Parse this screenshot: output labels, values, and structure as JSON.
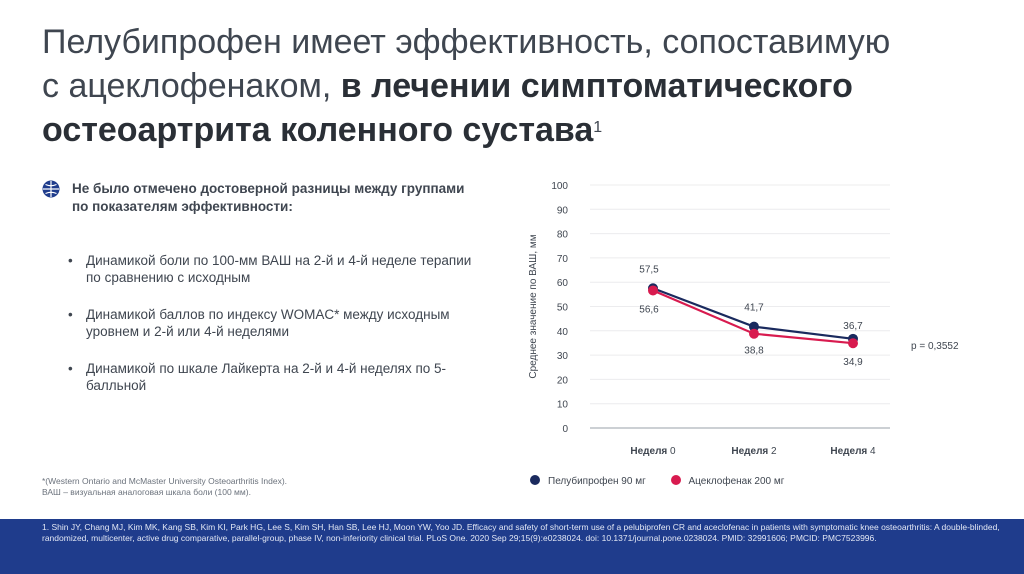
{
  "title": {
    "line1": "Пелубипрофен имеет эффективность, сопоставимую",
    "line2_regular": "с ацеклофенаком, ",
    "line2_bold": "в лечении симптоматического",
    "line3_bold": "остеоартрита коленного сустава",
    "sup": "1"
  },
  "lead": {
    "icon": "globe-icon",
    "text": "Не было отмечено достоверной разницы между группами по показателям эффективности:"
  },
  "bullets": [
    "Динамикой боли по 100-мм ВАШ на 2-й и 4-й неделе терапии по сравнению с исходным",
    "Динамикой баллов по индексу WOMAC* между исходным уровнем и 2-й или 4-й неделями",
    "Динамикой по шкале Лайкерта на 2-й и 4-й неделях по 5-балльной"
  ],
  "bullet_char": "•",
  "footnote": {
    "line1": "*(Western Ontario and McMaster University Osteoarthritis Index).",
    "line2": "ВАШ – визуальная аналоговая шкала боли (100 мм)."
  },
  "reference": "1. Shin JY, Chang MJ, Kim MK, Kang SB, Kim KI, Park HG, Lee S, Kim SH, Han SB, Lee HJ, Moon YW, Yoo JD. Efficacy and safety of short-term use of a pelubiprofen CR and aceclofenac in patients with symptomatic knee osteoarthritis: A double-blinded, randomized, multicenter, active drug comparative, parallel-group, phase IV, non-inferiority clinical trial. PLoS One. 2020 Sep 29;15(9):e0238024. doi: 10.1371/journal.pone.0238024. PMID: 32991606; PMCID: PMC7523996.",
  "colors": {
    "pelubiprofen": "#1a2a5e",
    "aceclofenac": "#d81b4f",
    "reference_bar": "#1f3c8c"
  },
  "chart_data": {
    "type": "line",
    "categories": [
      "Неделя 0",
      "Неделя 2",
      "Неделя 4"
    ],
    "category_prefix": "Неделя",
    "category_numbers": [
      "0",
      "2",
      "4"
    ],
    "ylabel": "Среднее значение по ВАШ, мм",
    "ylim": [
      0,
      100
    ],
    "yticks": [
      0,
      10,
      20,
      30,
      40,
      50,
      60,
      70,
      80,
      90,
      100
    ],
    "grid": true,
    "legend_position": "bottom",
    "series": [
      {
        "name": "Пелубипрофен 90 мг",
        "values": [
          57.5,
          41.7,
          36.7
        ],
        "labels": [
          "57,5",
          "41,7",
          "36,7"
        ],
        "color": "#1a2a5e"
      },
      {
        "name": "Ацеклофенак 200 мг",
        "values": [
          56.6,
          38.8,
          34.9
        ],
        "labels": [
          "56,6",
          "38,8",
          "34,9"
        ],
        "color": "#d81b4f"
      }
    ],
    "annotation": "p = 0,3552"
  }
}
